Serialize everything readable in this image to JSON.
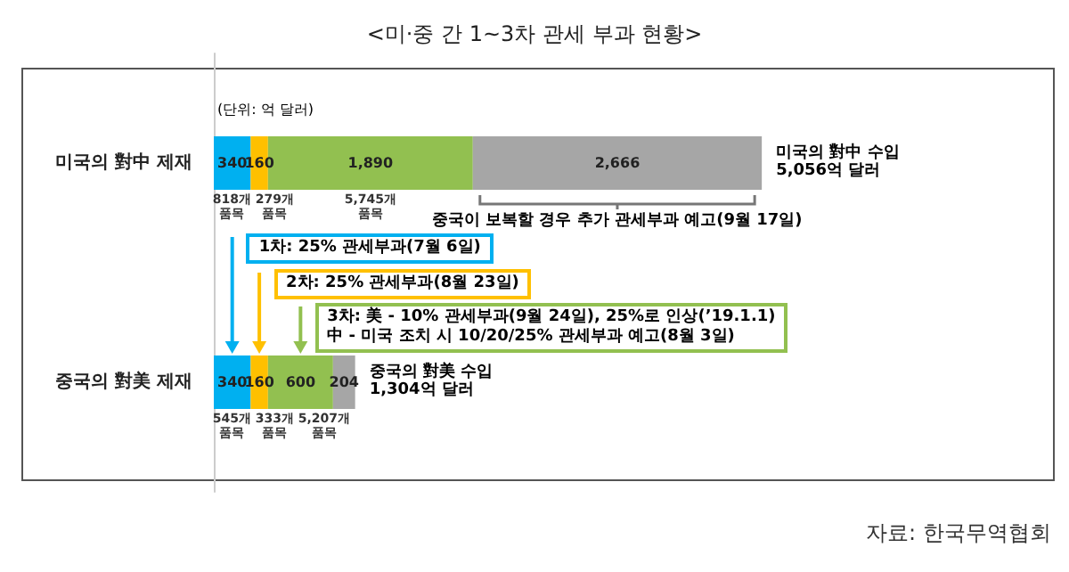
{
  "chart_data": {
    "type": "bar",
    "orientation": "horizontal",
    "stacked": true,
    "title": "<미·중 간 1~3차 관세 부과 현황>",
    "subtitle": "(단위: 억 달러)",
    "categories": [
      "미국의 對中 제재",
      "중국의 對美 제재"
    ],
    "series": [
      {
        "color": "#00b0f0",
        "values": [
          340,
          340
        ]
      },
      {
        "color": "#ffc000",
        "values": [
          160,
          160
        ]
      },
      {
        "color": "#92c050",
        "values": [
          1890,
          600
        ],
        "value_labels": [
          "1,890",
          "600"
        ]
      },
      {
        "color": "#a6a6a6",
        "values": [
          2666,
          204
        ],
        "value_labels": [
          "2,666",
          "204"
        ]
      }
    ],
    "data_labels": true,
    "totals": [
      "미국의 對中 수입\n5,056억 달러",
      "중국의 對美 수입\n1,304억 달러"
    ],
    "tick_labels": "y",
    "annotations": [
      "818개 품목",
      "279개 품목",
      "5,745개 품목",
      "중국이 보복할 경우 추가 관세부과 예고(9월 17일)",
      "545개 품목",
      "333개 품목",
      "5,207개 품목",
      "1차: 25% 관세부과(7월 6일)",
      "2차: 25% 관세부과(8월 23일)",
      "3차: 美 - 10% 관세부과(9월 24일), 25%로 인상(’19.1.1)\n中 - 미국 조치 시 10/20/25% 관세부과 예고(8월 3일)",
      "자료: 한국무역협회"
    ]
  }
}
